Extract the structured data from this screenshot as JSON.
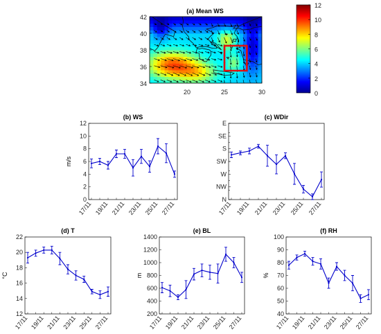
{
  "chart_data": [
    {
      "id": "a",
      "type": "heatmap",
      "title": "(a)  Mean WS",
      "x_ticks": [
        20,
        25,
        30
      ],
      "y_ticks": [
        34,
        36,
        38,
        40,
        42
      ],
      "xlim": [
        15,
        30
      ],
      "ylim": [
        34,
        42
      ],
      "colorbar": {
        "ticks": [
          0,
          2,
          4,
          6,
          8,
          10,
          12
        ],
        "range": [
          0,
          12
        ],
        "colormap": "jet"
      },
      "box": {
        "lon": [
          25,
          28
        ],
        "lat": [
          35.5,
          38.5
        ],
        "color": "#e01010"
      }
    },
    {
      "id": "b",
      "type": "line",
      "title": "(b)  WS",
      "ylabel": "m/s",
      "ylim": [
        0,
        12
      ],
      "y_ticks": [
        0,
        2,
        4,
        6,
        8,
        10,
        12
      ],
      "x_tick_labels": [
        "17/11",
        "19/11",
        "21/11",
        "23/11",
        "25/11",
        "27/11"
      ],
      "x": [
        0,
        1,
        2,
        3,
        4,
        5,
        6,
        7,
        8,
        9,
        10
      ],
      "series": [
        {
          "color": "#0000cc",
          "values": [
            5.7,
            6.0,
            5.4,
            7.2,
            7.2,
            5.0,
            6.8,
            5.2,
            8.4,
            7.3,
            4.0
          ],
          "errors": [
            0.7,
            0.5,
            0.6,
            0.6,
            0.7,
            1.3,
            1.1,
            0.9,
            1.2,
            1.5,
            0.5
          ]
        }
      ]
    },
    {
      "id": "c",
      "type": "line",
      "title": "(c)  WDir",
      "ylim": [
        0,
        8
      ],
      "y_ticks": [
        0,
        1,
        2,
        3,
        4,
        5,
        6,
        7,
        8
      ],
      "y_tick_labels": [
        "N",
        "NW",
        "W",
        "SW",
        "S",
        "SE",
        "E"
      ],
      "y_label_values": [
        0,
        1.333,
        2.667,
        4,
        5.333,
        6.667,
        8
      ],
      "x_tick_labels": [
        "17/11",
        "19/11",
        "21/11",
        "23/11",
        "25/11",
        "27/11"
      ],
      "x": [
        0,
        1,
        2,
        3,
        4,
        5,
        6,
        7,
        8,
        9,
        10
      ],
      "series": [
        {
          "color": "#0000cc",
          "values": [
            4.7,
            4.9,
            5.1,
            5.6,
            4.6,
            3.7,
            4.6,
            2.7,
            1.1,
            0.3,
            2.1
          ],
          "errors": [
            0.3,
            0.2,
            0.3,
            0.2,
            1.1,
            1.0,
            0.3,
            1.1,
            0.4,
            0.3,
            0.8
          ]
        }
      ]
    },
    {
      "id": "d",
      "type": "line",
      "title": "(d)  T",
      "ylabel": "°C",
      "ylim": [
        12,
        22
      ],
      "y_ticks": [
        12,
        14,
        16,
        18,
        20,
        22
      ],
      "x_tick_labels": [
        "17/11",
        "19/11",
        "21/11",
        "23/11",
        "25/11",
        "27/11"
      ],
      "x": [
        0,
        1,
        2,
        3,
        4,
        5,
        6,
        7,
        8,
        9,
        10
      ],
      "series": [
        {
          "color": "#0000cc",
          "values": [
            19.3,
            19.9,
            20.3,
            20.3,
            19.2,
            17.8,
            17.0,
            16.5,
            14.9,
            14.5,
            14.9
          ],
          "errors": [
            0.7,
            0.4,
            0.4,
            0.5,
            0.8,
            0.6,
            0.6,
            0.4,
            0.3,
            0.5,
            0.6
          ]
        }
      ]
    },
    {
      "id": "e",
      "type": "line",
      "title": "(e)  BL",
      "ylabel": "m",
      "ylim": [
        200,
        1400
      ],
      "y_ticks": [
        200,
        400,
        600,
        800,
        1000,
        1200,
        1400
      ],
      "x_tick_labels": [
        "17/11",
        "19/11",
        "21/11",
        "23/11",
        "25/11",
        "27/11"
      ],
      "x": [
        0,
        1,
        2,
        3,
        4,
        5,
        6,
        7,
        8,
        9,
        10
      ],
      "series": [
        {
          "color": "#0000cc",
          "values": [
            610,
            560,
            460,
            580,
            820,
            880,
            850,
            830,
            1130,
            1000,
            770
          ],
          "errors": [
            80,
            90,
            40,
            140,
            90,
            100,
            110,
            150,
            110,
            80,
            80
          ]
        }
      ]
    },
    {
      "id": "f",
      "type": "line",
      "title": "(f)  RH",
      "ylabel": "%",
      "ylim": [
        40,
        100
      ],
      "y_ticks": [
        40,
        50,
        60,
        70,
        80,
        90,
        100
      ],
      "x_tick_labels": [
        "17/11",
        "19/11",
        "21/11",
        "23/11",
        "25/11",
        "27/11"
      ],
      "x": [
        0,
        1,
        2,
        3,
        4,
        5,
        6,
        7,
        8,
        9,
        10
      ],
      "series": [
        {
          "color": "#0000cc",
          "values": [
            78,
            84,
            87,
            81,
            79,
            64,
            77,
            70,
            64,
            52,
            55
          ],
          "errors": [
            3,
            2,
            2,
            3,
            4,
            4,
            3,
            4,
            6,
            3,
            4
          ]
        }
      ]
    }
  ]
}
